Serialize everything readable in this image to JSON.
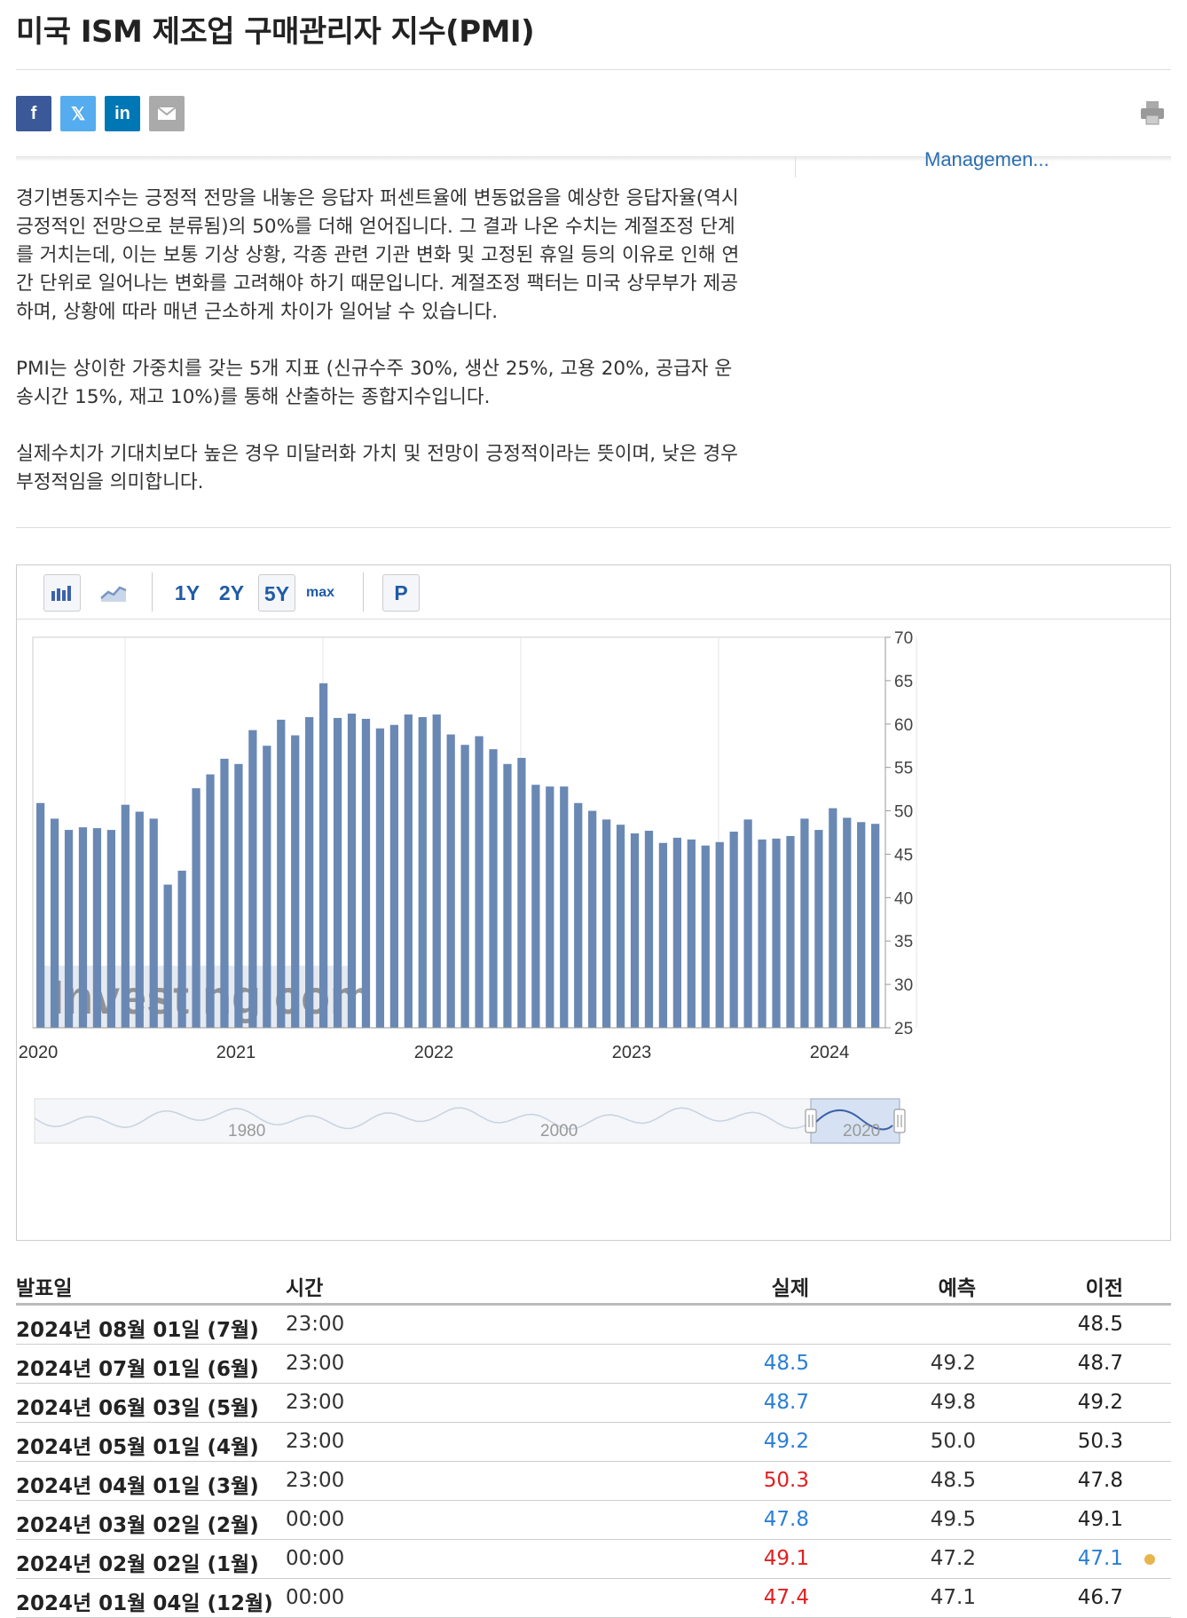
{
  "title": "미국 ISM 제조업 구매관리자 지수(PMI)",
  "share": {
    "facebook": "f",
    "twitter": "𝕏",
    "linkedin": "in",
    "icons": [
      "facebook-icon",
      "twitter-icon",
      "linkedin-icon",
      "email-icon",
      "print-icon"
    ],
    "colors": {
      "facebook": "#3b5998",
      "twitter": "#55acee",
      "linkedin": "#0077b5",
      "email": "#aaaaaa"
    }
  },
  "side_link": "Managemen...",
  "description": [
    "경기변동지수는 긍정적 전망을 내놓은 응답자 퍼센트율에 변동없음을 예상한 응답자율(역시 긍정적인 전망으로 분류됨)의 50%를 더해 얻어집니다. 그 결과 나온 수치는 계절조정 단계를 거치는데, 이는 보통 기상 상황, 각종 관련 기관 변화 및 고정된 휴일 등의 이유로 인해 연간 단위로 일어나는 변화를 고려해야 하기 때문입니다. 계절조정 팩터는 미국 상무부가 제공하며, 상황에 따라 매년 근소하게 차이가 일어날 수 있습니다.",
    "PMI는 상이한 가중치를 갖는 5개 지표 (신규수주 30%, 생산 25%, 고용 20%, 공급자 운송시간 15%, 재고 10%)를 통해 산출하는 종합지수입니다.",
    "실제수치가 기대치보다 높은 경우 미달러화 가치 및 전망이 긍정적이라는 뜻이며, 낮은 경우 부정적임을 의미합니다."
  ],
  "toolbar": {
    "ranges": [
      "1Y",
      "2Y",
      "5Y",
      "max"
    ],
    "active_range": "5Y",
    "p_label": "P"
  },
  "chart_data": {
    "type": "bar",
    "x_tick_labels": [
      "2020",
      "2021",
      "2022",
      "2023",
      "2024"
    ],
    "ylim": [
      25,
      70
    ],
    "y_ticks": [
      70,
      65,
      60,
      55,
      50,
      45,
      40,
      35,
      30,
      25
    ],
    "y_axis_position": "right",
    "bar_color": "#6a88b4",
    "watermark": "Investing.com",
    "series": [
      {
        "values": [
          50.9,
          49.1,
          47.8,
          48.1,
          48.0,
          47.8,
          50.7,
          49.9,
          49.1,
          41.5,
          43.1,
          52.6,
          54.2,
          56.0,
          55.4,
          59.3,
          57.5,
          60.5,
          58.7,
          60.8,
          64.7,
          60.7,
          61.2,
          60.6,
          59.5,
          59.9,
          61.1,
          60.8,
          61.1,
          58.8,
          57.6,
          58.6,
          57.1,
          55.4,
          56.1,
          53.0,
          52.8,
          52.8,
          50.9,
          50.0,
          49.0,
          48.4,
          47.4,
          47.7,
          46.3,
          46.9,
          46.7,
          46.0,
          46.4,
          47.6,
          49.0,
          46.7,
          46.8,
          47.1,
          49.1,
          47.8,
          50.3,
          49.2,
          48.7,
          48.5
        ]
      }
    ],
    "navigator": {
      "tick_labels": [
        "1980",
        "2000",
        "2020"
      ]
    }
  },
  "table": {
    "headers": {
      "date": "발표일",
      "time": "시간",
      "actual": "실제",
      "forecast": "예측",
      "previous": "이전"
    },
    "rows": [
      {
        "date": "2024년 08월 01일 (7월)",
        "time": "23:00",
        "actual": "",
        "actual_trend": "",
        "forecast": "",
        "previous": "48.5",
        "previous_trend": ""
      },
      {
        "date": "2024년 07월 01일 (6월)",
        "time": "23:00",
        "actual": "48.5",
        "actual_trend": "down",
        "forecast": "49.2",
        "previous": "48.7",
        "previous_trend": ""
      },
      {
        "date": "2024년 06월 03일 (5월)",
        "time": "23:00",
        "actual": "48.7",
        "actual_trend": "down",
        "forecast": "49.8",
        "previous": "49.2",
        "previous_trend": ""
      },
      {
        "date": "2024년 05월 01일 (4월)",
        "time": "23:00",
        "actual": "49.2",
        "actual_trend": "down",
        "forecast": "50.0",
        "previous": "50.3",
        "previous_trend": ""
      },
      {
        "date": "2024년 04월 01일 (3월)",
        "time": "23:00",
        "actual": "50.3",
        "actual_trend": "up",
        "forecast": "48.5",
        "previous": "47.8",
        "previous_trend": ""
      },
      {
        "date": "2024년 03월 02일 (2월)",
        "time": "00:00",
        "actual": "47.8",
        "actual_trend": "down",
        "forecast": "49.5",
        "previous": "49.1",
        "previous_trend": ""
      },
      {
        "date": "2024년 02월 02일 (1월)",
        "time": "00:00",
        "actual": "49.1",
        "actual_trend": "up",
        "forecast": "47.2",
        "previous": "47.1",
        "previous_trend": "down",
        "revised": true
      },
      {
        "date": "2024년 01월 04일 (12월)",
        "time": "00:00",
        "actual": "47.4",
        "actual_trend": "up",
        "forecast": "47.1",
        "previous": "46.7",
        "previous_trend": ""
      }
    ]
  }
}
